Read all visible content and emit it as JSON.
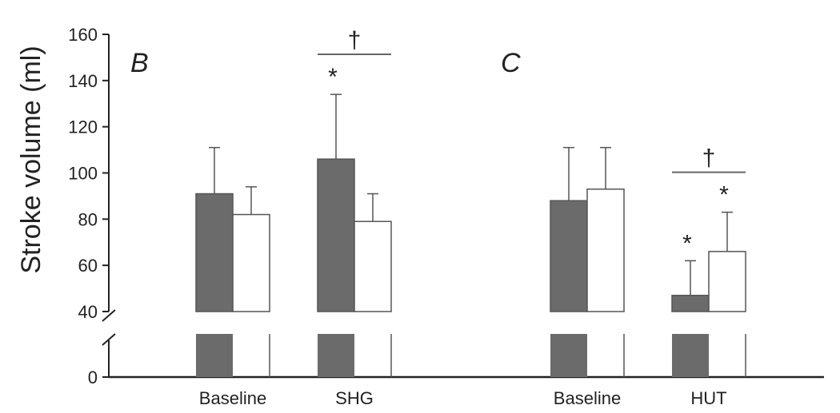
{
  "chart_data": {
    "type": "bar",
    "ylabel": "Stroke volume (ml)",
    "yticks": [
      0,
      40,
      60,
      80,
      100,
      120,
      140,
      160
    ],
    "axis_break": [
      0,
      40
    ],
    "ylim": [
      40,
      160
    ],
    "colors": {
      "dark": "#6b6b6b",
      "light": "#ffffff",
      "stroke": "#555555",
      "axis": "#222222"
    },
    "panels": [
      {
        "label": "B",
        "categories": [
          "Baseline",
          "SHG"
        ],
        "series": [
          {
            "fill": "dark",
            "values": [
              91,
              106
            ],
            "errors": [
              20,
              28
            ]
          },
          {
            "fill": "light",
            "values": [
              82,
              79
            ],
            "errors": [
              12,
              12
            ]
          }
        ],
        "star_marks": [
          {
            "category": 1,
            "series": 0,
            "text": "*"
          }
        ],
        "dagger": {
          "category": 1,
          "text": "†"
        }
      },
      {
        "label": "C",
        "categories": [
          "Baseline",
          "HUT"
        ],
        "series": [
          {
            "fill": "dark",
            "values": [
              88,
              47
            ],
            "errors": [
              23,
              15
            ]
          },
          {
            "fill": "light",
            "values": [
              93,
              66
            ],
            "errors": [
              18,
              17
            ]
          }
        ],
        "star_marks": [
          {
            "category": 1,
            "series": 0,
            "text": "*"
          },
          {
            "category": 1,
            "series": 1,
            "text": "*"
          }
        ],
        "dagger": {
          "category": 1,
          "text": "†"
        }
      }
    ]
  }
}
